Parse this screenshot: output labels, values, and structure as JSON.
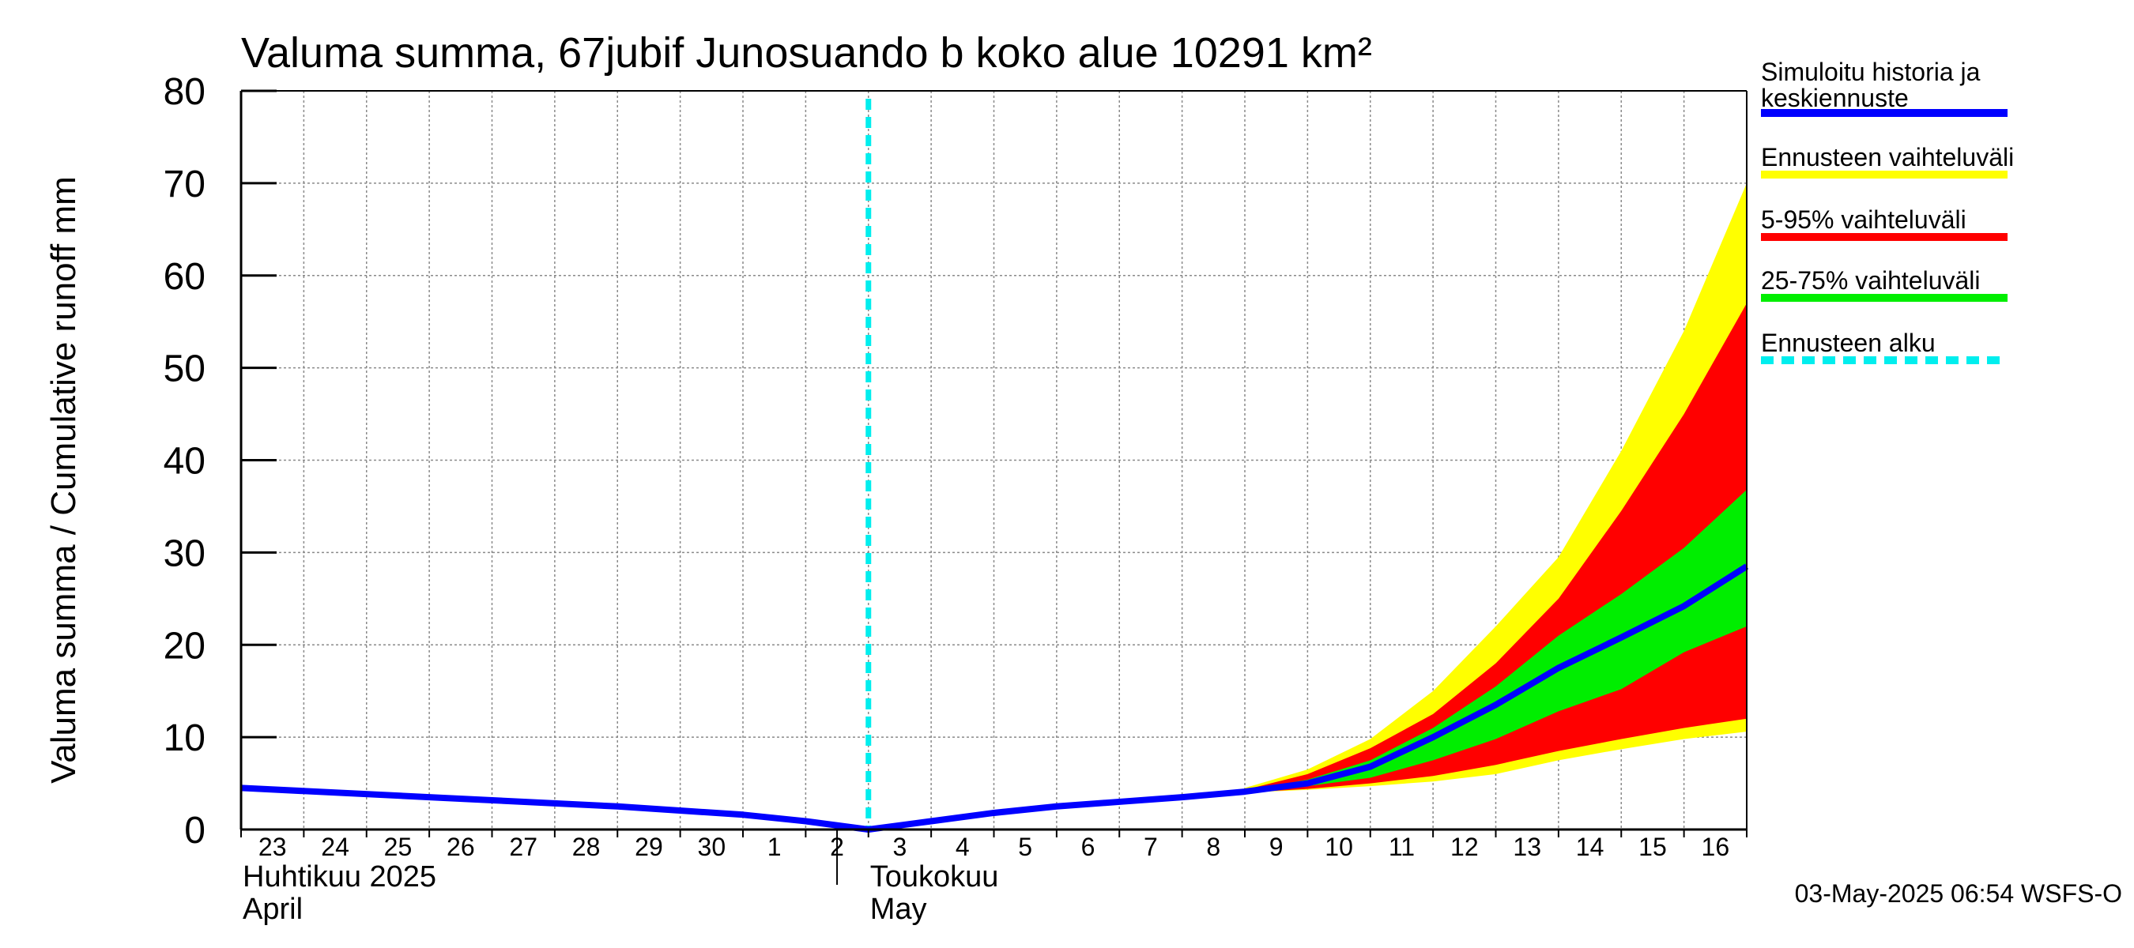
{
  "chart_data": {
    "type": "area",
    "title": "Valuma summa, 67jubif Junosuando b koko alue 10291 km²",
    "ylabel": "Valuma summa / Cumulative runoff    mm",
    "ylim": [
      0,
      80
    ],
    "yticks": [
      0,
      10,
      20,
      30,
      40,
      50,
      60,
      70,
      80
    ],
    "grid": true,
    "xlim": [
      "2025-04-23",
      "2025-05-17"
    ],
    "x_tick_labels": [
      "23",
      "24",
      "25",
      "26",
      "27",
      "28",
      "29",
      "30",
      "1",
      "2",
      "3",
      "4",
      "5",
      "6",
      "7",
      "8",
      "9",
      "10",
      "11",
      "12",
      "13",
      "14",
      "15",
      "16"
    ],
    "month_labels": [
      {
        "line1": "Huhtikuu  2025",
        "line2": "April",
        "start": "2025-04-23"
      },
      {
        "line1": "Toukokuu",
        "line2": "May",
        "start": "2025-05-03"
      }
    ],
    "forecast_start": "2025-05-03",
    "series": [
      {
        "name": "Simuloitu historia ja keskiennuste",
        "color": "#0000ff",
        "points": [
          [
            "2025-04-23",
            4.5
          ],
          [
            "2025-04-26",
            3.5
          ],
          [
            "2025-04-29",
            2.5
          ],
          [
            "2025-05-01",
            1.6
          ],
          [
            "2025-05-02",
            0.9
          ],
          [
            "2025-05-03",
            0
          ],
          [
            "2025-05-04",
            0.9
          ],
          [
            "2025-05-05",
            1.8
          ],
          [
            "2025-05-06",
            2.5
          ],
          [
            "2025-05-07",
            3.0
          ],
          [
            "2025-05-08",
            3.5
          ],
          [
            "2025-05-09",
            4.1
          ],
          [
            "2025-05-10",
            5.0
          ],
          [
            "2025-05-11",
            6.8
          ],
          [
            "2025-05-12",
            10.0
          ],
          [
            "2025-05-13",
            13.5
          ],
          [
            "2025-05-14",
            17.5
          ],
          [
            "2025-05-15",
            20.8
          ],
          [
            "2025-05-16",
            24.2
          ],
          [
            "2025-05-17",
            28.5
          ]
        ]
      },
      {
        "name": "Ennusteen vaihteluväli",
        "color": "#ffff00",
        "upper": [
          [
            "2025-05-09",
            4.5
          ],
          [
            "2025-05-10",
            6.5
          ],
          [
            "2025-05-11",
            9.8
          ],
          [
            "2025-05-12",
            15.0
          ],
          [
            "2025-05-13",
            22.0
          ],
          [
            "2025-05-14",
            29.5
          ],
          [
            "2025-05-15",
            41.0
          ],
          [
            "2025-05-16",
            54.0
          ],
          [
            "2025-05-17",
            70.0
          ]
        ],
        "lower": [
          [
            "2025-05-09",
            4.0
          ],
          [
            "2025-05-10",
            4.3
          ],
          [
            "2025-05-11",
            4.7
          ],
          [
            "2025-05-12",
            5.2
          ],
          [
            "2025-05-13",
            6.0
          ],
          [
            "2025-05-14",
            7.5
          ],
          [
            "2025-05-15",
            8.7
          ],
          [
            "2025-05-16",
            9.8
          ],
          [
            "2025-05-17",
            10.6
          ]
        ]
      },
      {
        "name": "5-95% vaihteluväli",
        "color": "#ff0000",
        "upper": [
          [
            "2025-05-09",
            4.3
          ],
          [
            "2025-05-10",
            6.0
          ],
          [
            "2025-05-11",
            8.8
          ],
          [
            "2025-05-12",
            12.5
          ],
          [
            "2025-05-13",
            18.0
          ],
          [
            "2025-05-14",
            25.0
          ],
          [
            "2025-05-15",
            34.5
          ],
          [
            "2025-05-16",
            45.0
          ],
          [
            "2025-05-17",
            57.0
          ]
        ],
        "lower": [
          [
            "2025-05-09",
            4.0
          ],
          [
            "2025-05-10",
            4.4
          ],
          [
            "2025-05-11",
            5.0
          ],
          [
            "2025-05-12",
            5.8
          ],
          [
            "2025-05-13",
            7.0
          ],
          [
            "2025-05-14",
            8.5
          ],
          [
            "2025-05-15",
            9.8
          ],
          [
            "2025-05-16",
            11.0
          ],
          [
            "2025-05-17",
            12.0
          ]
        ]
      },
      {
        "name": "25-75% vaihteluväli",
        "color": "#00ee00",
        "upper": [
          [
            "2025-05-09",
            4.2
          ],
          [
            "2025-05-10",
            5.4
          ],
          [
            "2025-05-11",
            7.5
          ],
          [
            "2025-05-12",
            11.0
          ],
          [
            "2025-05-13",
            15.5
          ],
          [
            "2025-05-14",
            21.0
          ],
          [
            "2025-05-15",
            25.5
          ],
          [
            "2025-05-16",
            30.5
          ],
          [
            "2025-05-17",
            36.8
          ]
        ],
        "lower": [
          [
            "2025-05-09",
            4.0
          ],
          [
            "2025-05-10",
            4.7
          ],
          [
            "2025-05-11",
            5.6
          ],
          [
            "2025-05-12",
            7.5
          ],
          [
            "2025-05-13",
            9.8
          ],
          [
            "2025-05-14",
            12.8
          ],
          [
            "2025-05-15",
            15.2
          ],
          [
            "2025-05-16",
            19.2
          ],
          [
            "2025-05-17",
            22.0
          ]
        ]
      }
    ],
    "forecast_marker": {
      "name": "Ennusteen alku",
      "color": "#00eeee"
    },
    "legend": {
      "placement": "right",
      "items": [
        {
          "label": "Simuloitu historia ja keskiennuste",
          "color": "#0000ff",
          "style": "solid"
        },
        {
          "label": "Ennusteen vaihteluväli",
          "color": "#ffff00",
          "style": "solid"
        },
        {
          "label": "5-95% vaihteluväli",
          "color": "#ff0000",
          "style": "solid"
        },
        {
          "label": "25-75% vaihteluväli",
          "color": "#00ee00",
          "style": "solid"
        },
        {
          "label": "Ennusteen alku",
          "color": "#00eeee",
          "style": "dashed"
        }
      ]
    },
    "footer": "03-May-2025 06:54 WSFS-O"
  }
}
